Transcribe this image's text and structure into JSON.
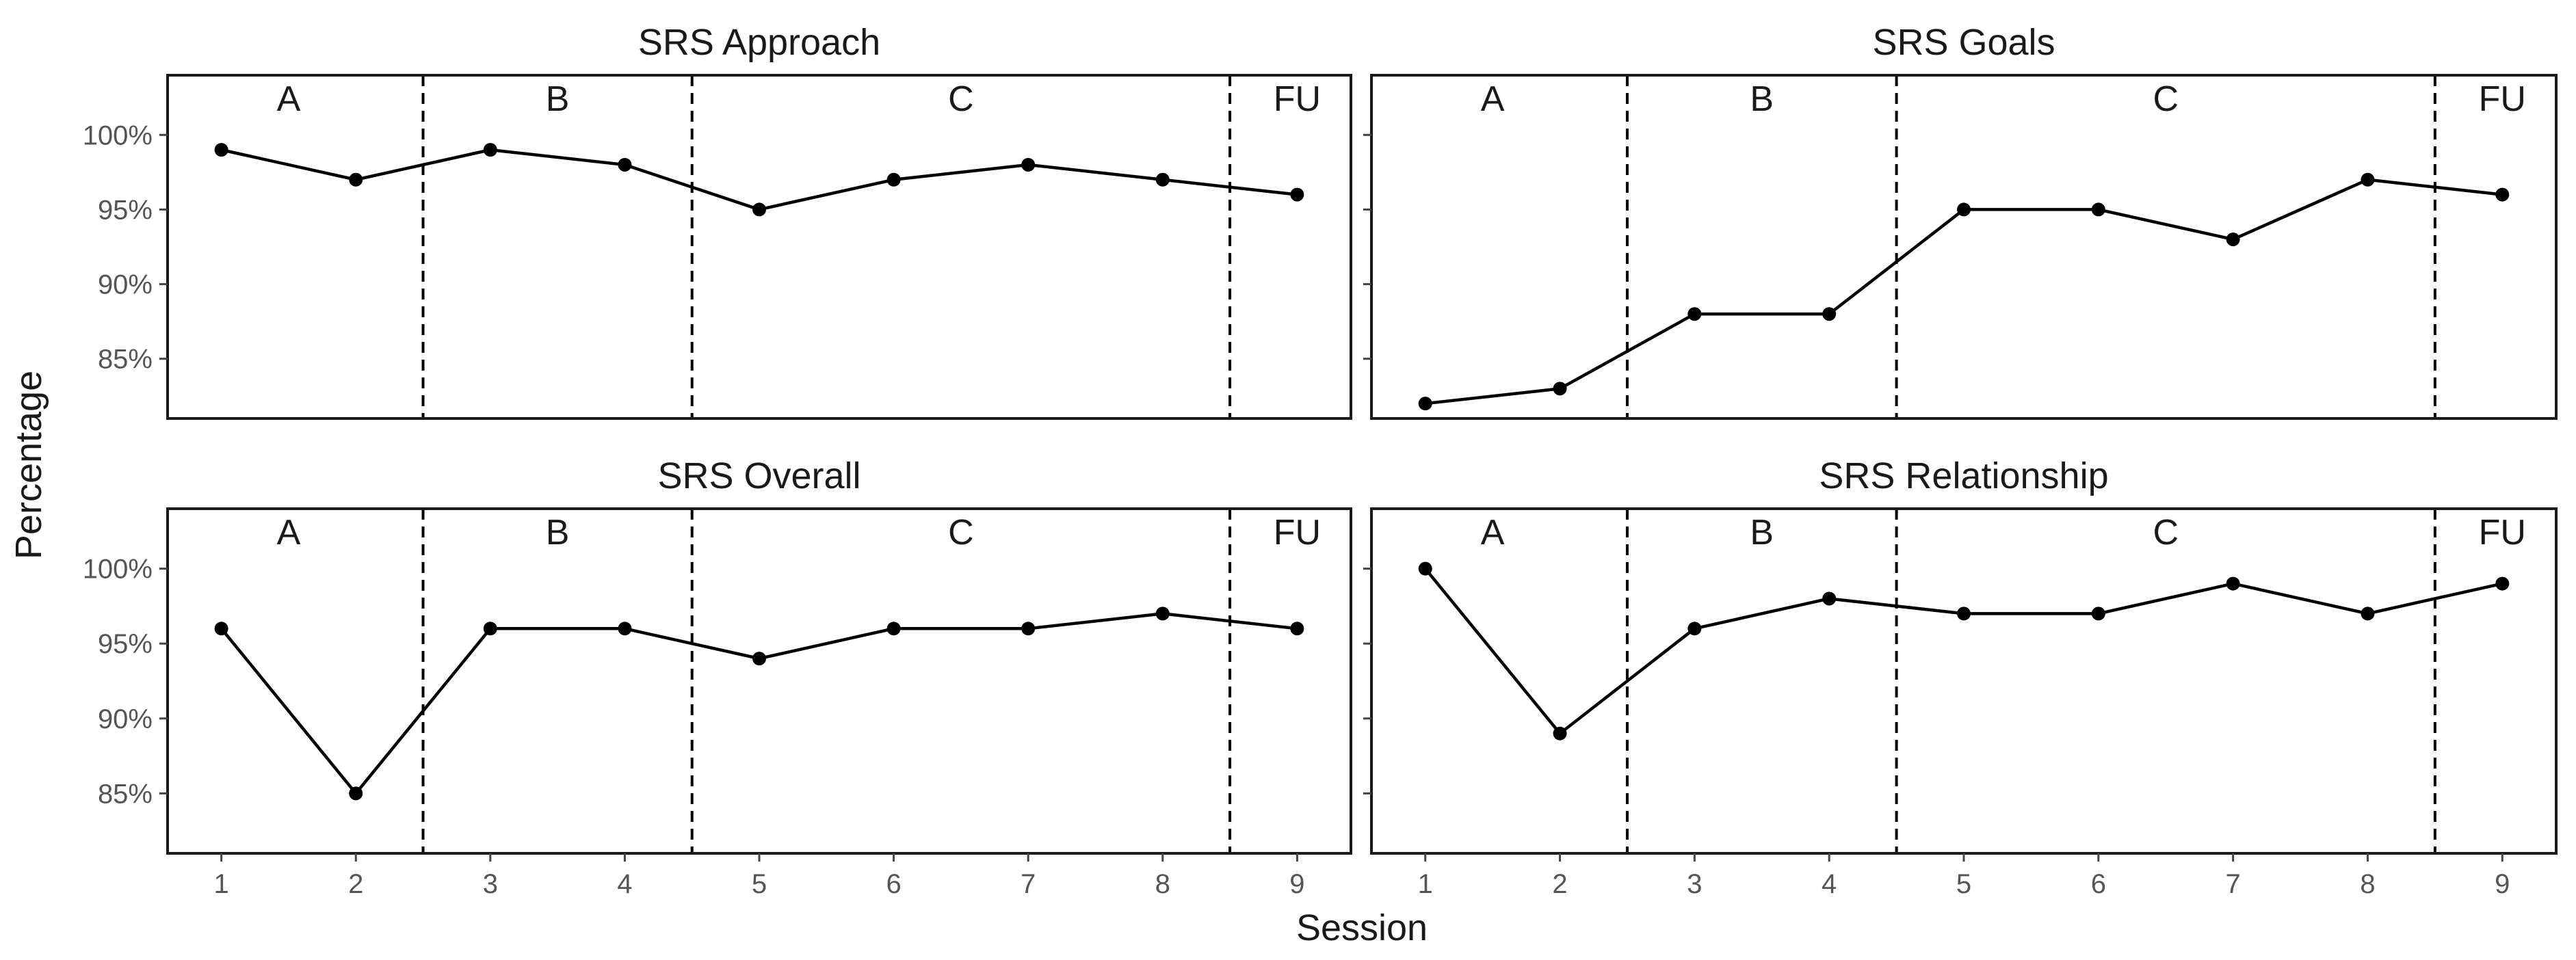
{
  "chart_data": {
    "type": "line",
    "title": "",
    "xlabel": "Session",
    "ylabel": "Percentage",
    "x": [
      1,
      2,
      3,
      4,
      5,
      6,
      7,
      8,
      9
    ],
    "xlim": [
      0.6,
      9.4
    ],
    "ylim": [
      81,
      104
    ],
    "yticks": [
      85,
      90,
      95,
      100
    ],
    "ytick_labels": [
      "85%",
      "90%",
      "95%",
      "100%"
    ],
    "xtick_labels": [
      "1",
      "2",
      "3",
      "4",
      "5",
      "6",
      "7",
      "8",
      "9"
    ],
    "phase_boundaries": [
      2.5,
      4.5,
      8.5
    ],
    "phases": [
      {
        "label": "A",
        "x": 1.5
      },
      {
        "label": "B",
        "x": 3.5
      },
      {
        "label": "C",
        "x": 6.5
      },
      {
        "label": "FU",
        "x": 9.0
      }
    ],
    "grid": false,
    "series": [
      {
        "name": "SRS Approach",
        "values": [
          99,
          97,
          99,
          98,
          95,
          97,
          98,
          97,
          96
        ]
      },
      {
        "name": "SRS Goals",
        "values": [
          82,
          83,
          88,
          88,
          95,
          95,
          93,
          97,
          96
        ]
      },
      {
        "name": "SRS Overall",
        "values": [
          96,
          85,
          96,
          96,
          94,
          96,
          96,
          97,
          96
        ]
      },
      {
        "name": "SRS Relationship",
        "values": [
          100,
          89,
          96,
          98,
          97,
          97,
          99,
          97,
          99
        ]
      }
    ],
    "colors": {
      "line": "#000000",
      "point": "#000000",
      "frame": "#1a1a1a",
      "tick_text": "#555555"
    }
  }
}
